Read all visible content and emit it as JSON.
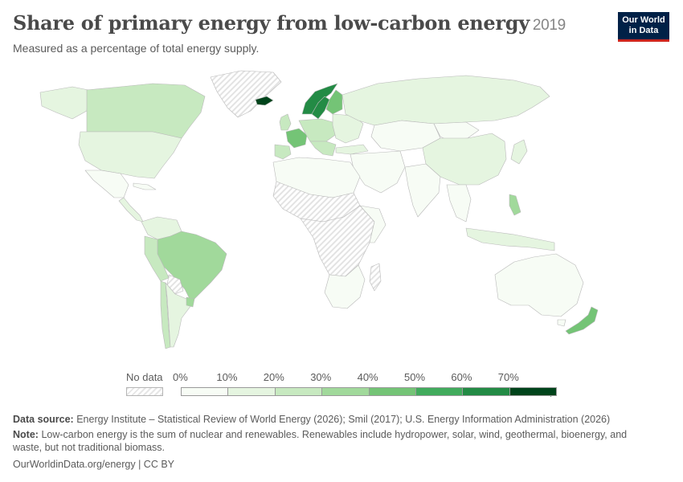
{
  "header": {
    "title": "Share of primary energy from low-carbon energy",
    "year": "2019",
    "subtitle": "Measured as a percentage of total energy supply."
  },
  "logo": {
    "line1": "Our World",
    "line2": "in Data"
  },
  "legend": {
    "no_data_label": "No data",
    "tick_labels": [
      "0%",
      "10%",
      "20%",
      "30%",
      "40%",
      "50%",
      "60%",
      "70%"
    ],
    "bins": [
      {
        "from": 0,
        "to": 10,
        "color": "#f7fcf5"
      },
      {
        "from": 10,
        "to": 20,
        "color": "#e5f5e0"
      },
      {
        "from": 20,
        "to": 30,
        "color": "#c7e9c0"
      },
      {
        "from": 30,
        "to": 40,
        "color": "#a1d99b"
      },
      {
        "from": 40,
        "to": 50,
        "color": "#74c476"
      },
      {
        "from": 50,
        "to": 60,
        "color": "#41ab5d"
      },
      {
        "from": 60,
        "to": 70,
        "color": "#238b45"
      },
      {
        "from": 70,
        "to": 100,
        "color": "#00441b"
      }
    ]
  },
  "map": {
    "value_unit": "%",
    "nodata_color": "#e8e8e8",
    "regions": [
      {
        "name": "Greenland",
        "bin": "nodata"
      },
      {
        "name": "Canada",
        "bin": "20-30"
      },
      {
        "name": "United States",
        "bin": "10-20"
      },
      {
        "name": "Mexico",
        "bin": "0-10"
      },
      {
        "name": "Brazil",
        "bin": "40-50"
      },
      {
        "name": "Iceland",
        "bin": "70+"
      },
      {
        "name": "Sweden",
        "bin": "60-70"
      },
      {
        "name": "Norway",
        "bin": "60-70"
      },
      {
        "name": "Finland",
        "bin": "40-50"
      },
      {
        "name": "France",
        "bin": "40-50"
      },
      {
        "name": "Russia",
        "bin": "0-10"
      },
      {
        "name": "China",
        "bin": "10-20"
      },
      {
        "name": "India",
        "bin": "0-10"
      },
      {
        "name": "Australia",
        "bin": "0-10"
      },
      {
        "name": "New Zealand",
        "bin": "40-50"
      }
    ]
  },
  "footer": {
    "source_label": "Data source:",
    "source_text": "Energy Institute – Statistical Review of World Energy (2026); Smil (2017); U.S. Energy Information Administration (2026)",
    "note_label": "Note:",
    "note_text": "Low-carbon energy is the sum of nuclear and renewables. Renewables include hydropower, solar, wind, geothermal, bioenergy, and waste, but not traditional biomass.",
    "url_text": "OurWorldinData.org/energy | CC BY"
  }
}
